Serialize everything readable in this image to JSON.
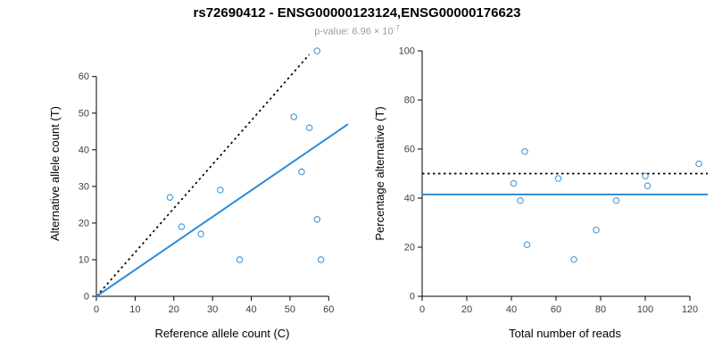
{
  "page": {
    "title": "rs72690412 - ENSG00000123124,ENSG00000176623",
    "subtitle": {
      "label": "p-value: 6.96",
      "times": " × 10",
      "exponent": "-7"
    }
  },
  "colors": {
    "accent_blue": "#2e8bd8",
    "point_blue": "#4d9fd9",
    "black": "#000000",
    "axis_text": "#404040",
    "subtitle_gray": "#9b9b9b"
  },
  "chart_data": [
    {
      "type": "scatter",
      "title": "",
      "xlabel": "Reference allele count (C)",
      "ylabel": "Alternative allele count (T)",
      "xlim": [
        0,
        65
      ],
      "ylim": [
        0,
        67
      ],
      "xticks": [
        0,
        10,
        20,
        30,
        40,
        50,
        60
      ],
      "yticks": [
        0,
        10,
        20,
        30,
        40,
        50,
        60
      ],
      "grid": false,
      "legend": false,
      "points": [
        [
          19,
          27
        ],
        [
          22,
          19
        ],
        [
          27,
          17
        ],
        [
          32,
          29
        ],
        [
          37,
          10
        ],
        [
          51,
          49
        ],
        [
          53,
          34
        ],
        [
          55,
          46
        ],
        [
          57,
          67
        ],
        [
          57,
          21
        ],
        [
          58,
          10
        ]
      ],
      "lines": [
        {
          "name": "expected-ratio-line",
          "style": "dotted",
          "color": "#000000",
          "x1": 0,
          "y1": 0,
          "x2": 55,
          "y2": 66
        },
        {
          "name": "fitted-regression-line",
          "style": "solid",
          "color": "#2e8bd8",
          "x1": 0,
          "y1": 0,
          "x2": 65,
          "y2": 47
        }
      ]
    },
    {
      "type": "scatter",
      "title": "",
      "xlabel": "Total number of reads",
      "ylabel": "Percentage alternative (T)",
      "xlim": [
        0,
        128
      ],
      "ylim": [
        0,
        100
      ],
      "xticks": [
        0,
        20,
        40,
        60,
        80,
        100,
        120
      ],
      "yticks": [
        0,
        20,
        40,
        60,
        80,
        100
      ],
      "grid": false,
      "legend": false,
      "points": [
        [
          46,
          59
        ],
        [
          41,
          46
        ],
        [
          44,
          39
        ],
        [
          61,
          48
        ],
        [
          47,
          21
        ],
        [
          100,
          49
        ],
        [
          87,
          39
        ],
        [
          101,
          45
        ],
        [
          124,
          54
        ],
        [
          78,
          27
        ],
        [
          68,
          15
        ]
      ],
      "lines": [
        {
          "name": "fifty-percent-line",
          "style": "dotted",
          "color": "#000000",
          "x1": 0,
          "y1": 50,
          "x2": 128,
          "y2": 50
        },
        {
          "name": "mean-percentage-line",
          "style": "solid",
          "color": "#2e8bd8",
          "x1": 0,
          "y1": 41.5,
          "x2": 128,
          "y2": 41.5
        }
      ]
    }
  ]
}
